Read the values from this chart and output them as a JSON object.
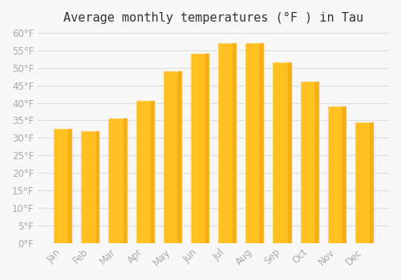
{
  "title": "Average monthly temperatures (°F ) in Tau",
  "months": [
    "Jan",
    "Feb",
    "Mar",
    "Apr",
    "May",
    "Jun",
    "Jul",
    "Aug",
    "Sep",
    "Oct",
    "Nov",
    "Dec"
  ],
  "values": [
    32.5,
    32.0,
    35.5,
    40.5,
    49.0,
    54.0,
    57.0,
    57.0,
    51.5,
    46.0,
    39.0,
    34.5
  ],
  "bar_color_face": "#FFC020",
  "bar_color_edge": "#FFD060",
  "bar_color_shadow": "#F0A010",
  "background_color": "#F8F8F8",
  "grid_color": "#DDDDDD",
  "ylim": [
    0,
    60
  ],
  "yticks": [
    0,
    5,
    10,
    15,
    20,
    25,
    30,
    35,
    40,
    45,
    50,
    55,
    60
  ],
  "title_fontsize": 11,
  "tick_fontsize": 8.5,
  "tick_color": "#AAAAAA"
}
